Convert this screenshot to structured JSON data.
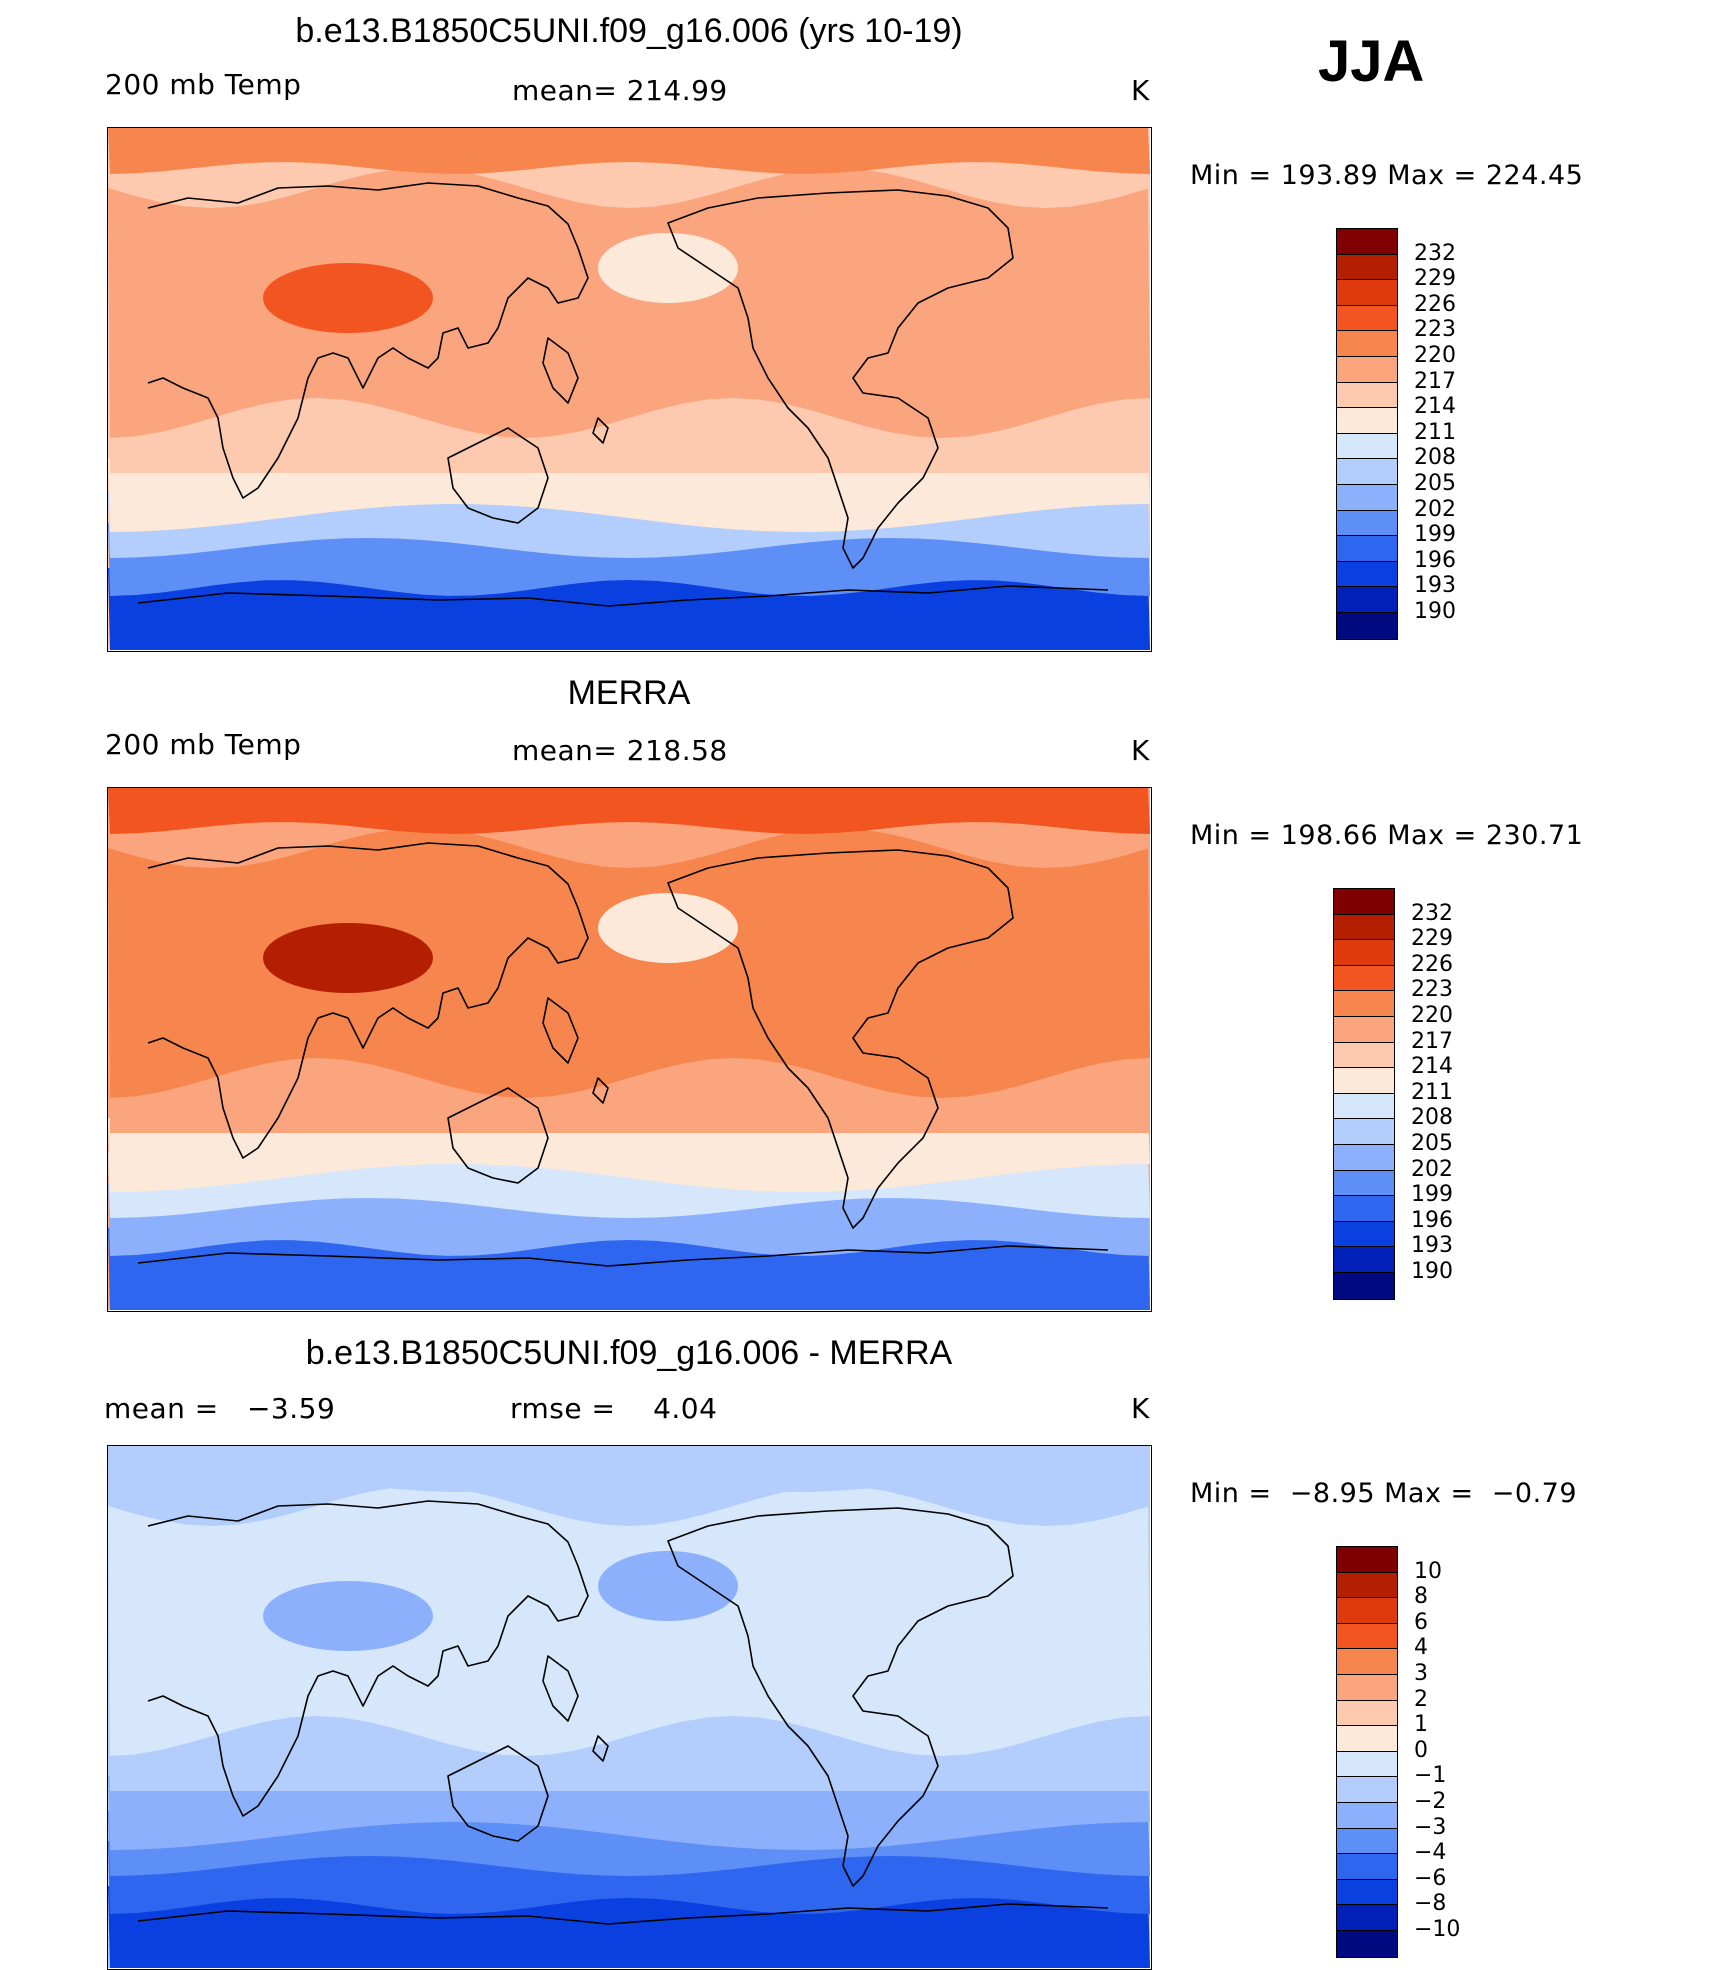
{
  "season": "JJA",
  "panels": [
    {
      "id": "model",
      "title": "b.e13.B1850C5UNI.f09_g16.006 (yrs 10-19)",
      "left_text": "200 mb Temp",
      "center_text": "mean= 214.99",
      "units": "K",
      "min_max": "Min = 193.89 Max = 224.45",
      "colorbar_labels": [
        "232",
        "229",
        "226",
        "223",
        "220",
        "217",
        "214",
        "211",
        "208",
        "205",
        "202",
        "199",
        "196",
        "193",
        "190"
      ],
      "colorbar_colors": [
        "#7f0000",
        "#b31f00",
        "#de3a0e",
        "#f2551f",
        "#f7864e",
        "#fba57f",
        "#fdcab0",
        "#fde9d9",
        "#d6e6fb",
        "#b3cdfc",
        "#8cb0fb",
        "#5e8ff7",
        "#2e66f0",
        "#0a40e0",
        "#0020b8",
        "#000a80"
      ],
      "field_colors": {
        "polar_cold": "#0a40e0",
        "mid_cold": "#5e8ff7",
        "cool": "#b3cdfc",
        "neutral": "#fde9d9",
        "warm": "#fdcab0",
        "warmer": "#fba57f",
        "hot": "#f7864e",
        "hotter": "#f2551f"
      }
    },
    {
      "id": "obs",
      "title": "MERRA",
      "left_text": "200 mb Temp",
      "center_text": "mean= 218.58",
      "units": "K",
      "min_max": "Min = 198.66 Max = 230.71",
      "colorbar_labels": [
        "232",
        "229",
        "226",
        "223",
        "220",
        "217",
        "214",
        "211",
        "208",
        "205",
        "202",
        "199",
        "196",
        "193",
        "190"
      ],
      "colorbar_colors": [
        "#7f0000",
        "#b31f00",
        "#de3a0e",
        "#f2551f",
        "#f7864e",
        "#fba57f",
        "#fdcab0",
        "#fde9d9",
        "#d6e6fb",
        "#b3cdfc",
        "#8cb0fb",
        "#5e8ff7",
        "#2e66f0",
        "#0a40e0",
        "#0020b8",
        "#000a80"
      ],
      "field_colors": {
        "polar_cold": "#2e66f0",
        "mid_cold": "#8cb0fb",
        "cool": "#d6e6fb",
        "neutral": "#fde9d9",
        "warm": "#fba57f",
        "warmer": "#f7864e",
        "hot": "#f2551f",
        "hotter": "#b31f00"
      }
    },
    {
      "id": "diff",
      "title": "b.e13.B1850C5UNI.f09_g16.006 - MERRA",
      "left_text": "mean =   −3.59",
      "center_text": "rmse =    4.04",
      "units": "K",
      "min_max": "Min =  −8.95 Max =  −0.79",
      "colorbar_labels": [
        "10",
        "8",
        "6",
        "4",
        "3",
        "2",
        "1",
        "0",
        "−1",
        "−2",
        "−3",
        "−4",
        "−6",
        "−8",
        "−10"
      ],
      "colorbar_colors": [
        "#7f0000",
        "#b31f00",
        "#de3a0e",
        "#f2551f",
        "#f7864e",
        "#fba57f",
        "#fdcab0",
        "#fde9d9",
        "#d6e6fb",
        "#b3cdfc",
        "#8cb0fb",
        "#5e8ff7",
        "#2e66f0",
        "#0a40e0",
        "#0020b8",
        "#000a80"
      ],
      "field_colors": {
        "polar_cold": "#0a40e0",
        "mid_cold": "#2e66f0",
        "cool": "#5e8ff7",
        "neutral": "#8cb0fb",
        "warm": "#b3cdfc",
        "warmer": "#d6e6fb",
        "hot": "#b3cdfc",
        "hotter": "#8cb0fb"
      }
    }
  ]
}
